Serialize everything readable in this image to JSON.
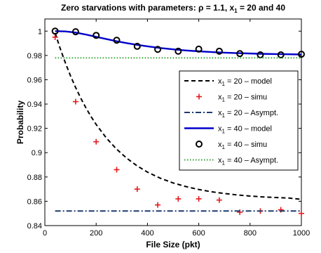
{
  "chart_data": {
    "type": "line",
    "title": "Zero starvations with parameters: ρ = 1.1, x₁ = 20 and 40",
    "title_parts": {
      "prefix": "Zero starvations with parameters: ρ = 1.1, x",
      "sub": "1",
      "suffix": " = 20 and 40"
    },
    "xlabel": "File Size (pkt)",
    "ylabel": "Probability",
    "xlim": [
      0,
      1000
    ],
    "ylim": [
      0.84,
      1.01
    ],
    "xticks": [
      0,
      200,
      400,
      600,
      800,
      1000
    ],
    "yticks": [
      0.84,
      0.86,
      0.88,
      0.9,
      0.92,
      0.94,
      0.96,
      0.98,
      1
    ],
    "ytick_labels": [
      "0.84",
      "0.86",
      "0.88",
      "0.9",
      "0.92",
      "0.94",
      "0.96",
      "0.98",
      "1"
    ],
    "grid": false,
    "legend_position": "right",
    "series": [
      {
        "name": "x₁ = 20 – model",
        "name_parts": {
          "prefix": "x",
          "sub": "1",
          "suffix": " = 20 – model"
        },
        "kind": "line",
        "style": "dashed",
        "color": "#000000",
        "x": [
          40,
          60,
          80,
          100,
          120,
          140,
          160,
          180,
          200,
          240,
          280,
          320,
          360,
          400,
          450,
          500,
          550,
          600,
          650,
          700,
          750,
          800,
          850,
          900,
          950,
          1000
        ],
        "y": [
          0.9985,
          0.9856,
          0.9739,
          0.9632,
          0.9536,
          0.9448,
          0.9369,
          0.9297,
          0.9232,
          0.912,
          0.9028,
          0.8953,
          0.8891,
          0.884,
          0.879,
          0.8751,
          0.8721,
          0.8697,
          0.8678,
          0.8664,
          0.8652,
          0.8643,
          0.8636,
          0.8631,
          0.8627,
          0.8616
        ]
      },
      {
        "name": "x₁ = 20 – simu",
        "name_parts": {
          "prefix": "x",
          "sub": "1",
          "suffix": " = 20 – simu"
        },
        "kind": "marker",
        "marker": "plus",
        "color": "#e31a1c",
        "x": [
          40,
          120,
          200,
          280,
          360,
          440,
          520,
          600,
          680,
          760,
          840,
          920,
          1000
        ],
        "y": [
          0.995,
          0.942,
          0.909,
          0.886,
          0.87,
          0.857,
          0.862,
          0.862,
          0.861,
          0.851,
          0.852,
          0.853,
          0.85
        ]
      },
      {
        "name": "x₁ = 20 – Asympt.",
        "name_parts": {
          "prefix": "x",
          "sub": "1",
          "suffix": " = 20 – Asympt."
        },
        "kind": "line",
        "style": "dashdot",
        "color": "#1f3b6e",
        "x": [
          40,
          1000
        ],
        "y": [
          0.852,
          0.852
        ]
      },
      {
        "name": "x₁ = 40 – model",
        "name_parts": {
          "prefix": "x",
          "sub": "1",
          "suffix": " = 40 – model"
        },
        "kind": "line",
        "style": "solid",
        "color": "#0000cc",
        "x": [
          40,
          80,
          120,
          160,
          200,
          240,
          280,
          320,
          360,
          400,
          450,
          500,
          550,
          600,
          650,
          700,
          750,
          800,
          850,
          900,
          950,
          1000
        ],
        "y": [
          1.0,
          0.9998,
          0.9988,
          0.9972,
          0.9953,
          0.9935,
          0.9917,
          0.9901,
          0.9887,
          0.9875,
          0.9861,
          0.985,
          0.9841,
          0.9834,
          0.9828,
          0.9823,
          0.9819,
          0.9816,
          0.9813,
          0.9811,
          0.981,
          0.9808
        ]
      },
      {
        "name": "x₁ = 40 – simu",
        "name_parts": {
          "prefix": "x",
          "sub": "1",
          "suffix": " = 40 – simu"
        },
        "kind": "marker",
        "marker": "circle",
        "color": "#000000",
        "x": [
          40,
          120,
          200,
          280,
          360,
          440,
          520,
          600,
          680,
          760,
          840,
          920,
          1000
        ],
        "y": [
          1.0,
          0.9995,
          0.9965,
          0.9925,
          0.9875,
          0.985,
          0.9835,
          0.9852,
          0.9835,
          0.9815,
          0.9805,
          0.9805,
          0.981
        ]
      },
      {
        "name": "x₁ = 40 – Asympt.",
        "name_parts": {
          "prefix": "x",
          "sub": "1",
          "suffix": " = 40 – Asympt."
        },
        "kind": "line",
        "style": "dotted",
        "color": "#2ca02c",
        "x": [
          40,
          1000
        ],
        "y": [
          0.978,
          0.978
        ]
      }
    ]
  }
}
